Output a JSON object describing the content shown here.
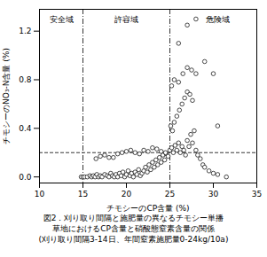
{
  "chart_data": {
    "type": "scatter",
    "xlabel": "チモシーのCP含量 (%)",
    "ylabel": "チモシーのNO₃-N含量 (%)",
    "caption": [
      "図2．刈り取り間隔と施肥量の異なるチモシー単播",
      "草地におけるCP含量と硝酸態窒素含量の関係",
      "(刈り取り間隔3-14日、年間窒素施肥量0-24kg/10a)"
    ],
    "xlim": [
      10,
      35
    ],
    "ylim": [
      -0.05,
      1.38
    ],
    "xticks": [
      10,
      15,
      20,
      25,
      30,
      35
    ],
    "yticks": [
      {
        "value": 0,
        "label": "0.0"
      },
      0.4,
      0.8,
      1.2
    ],
    "vlines": [
      15,
      25
    ],
    "hlines": [
      0.2
    ],
    "annotations": [
      {
        "text": "安全域",
        "x": 12.5,
        "y": 1.32
      },
      {
        "text": "許容域",
        "x": 20.0,
        "y": 1.32
      },
      {
        "text": "危険域",
        "x": 30.5,
        "y": 1.32
      }
    ],
    "color": "black",
    "marker": "o",
    "grid": false,
    "x": [
      14.8,
      15.0,
      15.2,
      15.5,
      15.8,
      16.0,
      16.2,
      16.4,
      16.6,
      16.8,
      17.0,
      17.2,
      17.5,
      17.8,
      18.0,
      18.2,
      18.4,
      18.6,
      18.8,
      19.0,
      19.2,
      19.4,
      19.6,
      19.8,
      20.0,
      20.2,
      20.4,
      20.6,
      20.8,
      21.0,
      21.2,
      21.4,
      21.6,
      21.8,
      22.0,
      22.2,
      22.4,
      22.6,
      22.8,
      23.0,
      23.2,
      23.4,
      23.6,
      23.8,
      24.0,
      24.2,
      24.4,
      24.6,
      24.8,
      25.0,
      25.2,
      25.4,
      25.6,
      25.8,
      26.0,
      26.2,
      26.4,
      26.6,
      26.8,
      27.0,
      27.2,
      27.4,
      27.6,
      27.8,
      28.0,
      28.2,
      28.5,
      28.8,
      29.0,
      29.5,
      30.0,
      30.5,
      31.5,
      16.5,
      17.5,
      18.5,
      19.5,
      20.5,
      21.5,
      22.5,
      23.5,
      24.5,
      17.0,
      18.0,
      19.0,
      20.0,
      21.0,
      22.0,
      23.0,
      24.0,
      25.1,
      25.3,
      25.5,
      25.8,
      26.1,
      26.4,
      26.7,
      27.0,
      27.3,
      27.6,
      25.2,
      25.5,
      26.0,
      26.5,
      27.0,
      27.5,
      28.0,
      29.0,
      30.0,
      30.5,
      26.0,
      27.0,
      28.0
    ],
    "values": [
      0.0,
      0.0,
      0.0,
      0.0,
      0.01,
      0.0,
      0.01,
      0.0,
      0.02,
      0.0,
      0.01,
      0.0,
      0.02,
      0.01,
      0.0,
      0.03,
      0.01,
      0.0,
      0.02,
      0.0,
      0.03,
      0.01,
      0.04,
      0.0,
      0.02,
      0.05,
      0.01,
      0.03,
      0.0,
      0.04,
      0.02,
      0.06,
      0.01,
      0.03,
      0.05,
      0.08,
      0.04,
      0.1,
      0.06,
      0.12,
      0.08,
      0.14,
      0.1,
      0.16,
      0.12,
      0.18,
      0.14,
      0.19,
      0.17,
      0.22,
      0.24,
      0.2,
      0.26,
      0.22,
      0.28,
      0.2,
      0.25,
      0.22,
      0.18,
      0.3,
      0.25,
      0.35,
      0.28,
      0.38,
      0.22,
      0.18,
      0.15,
      0.1,
      0.08,
      0.05,
      0.03,
      0.02,
      0.0,
      0.15,
      0.18,
      0.16,
      0.2,
      0.22,
      0.19,
      0.21,
      0.23,
      0.2,
      0.17,
      0.16,
      0.19,
      0.21,
      0.2,
      0.22,
      0.24,
      0.21,
      0.42,
      0.38,
      0.45,
      0.5,
      0.55,
      0.6,
      0.65,
      0.7,
      0.68,
      0.63,
      0.75,
      0.8,
      0.78,
      0.85,
      0.9,
      0.88,
      0.85,
      0.95,
      0.85,
      0.42,
      1.1,
      1.25,
      1.3
    ]
  }
}
